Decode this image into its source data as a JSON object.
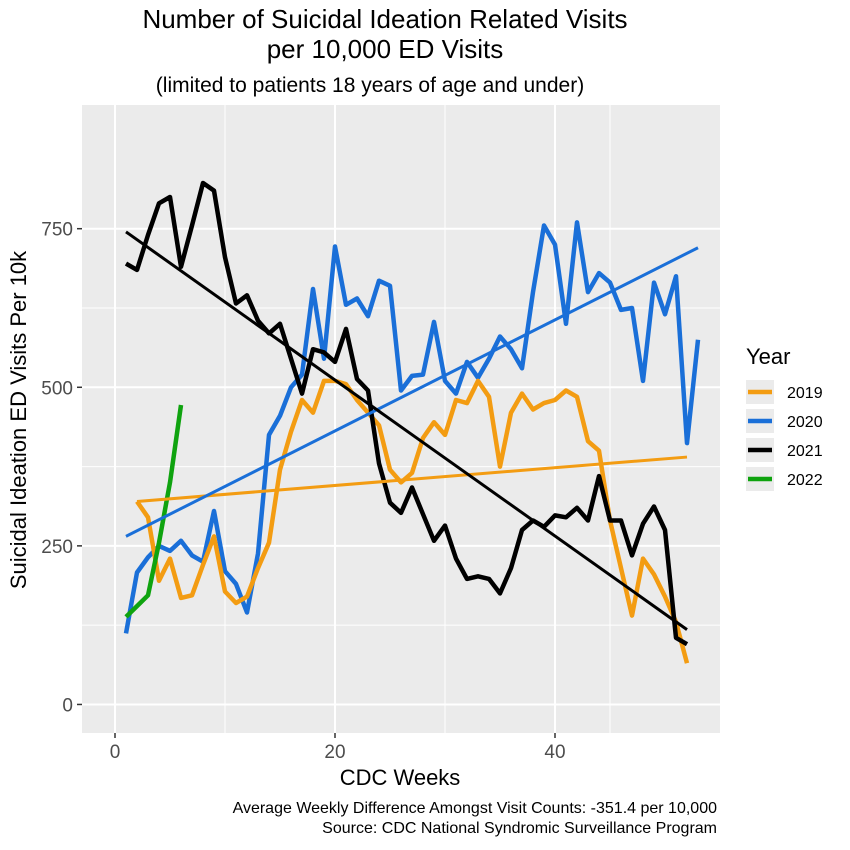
{
  "chart_data": {
    "type": "line",
    "title_line1": "Number of Suicidal Ideation Related Visits",
    "title_line2": "per 10,000 ED Visits",
    "subtitle": "(limited to patients 18 years of age and under)",
    "xlabel": "CDC Weeks",
    "ylabel": "Suicidal Ideation ED Visits Per 10k",
    "xlim": [
      -3,
      55
    ],
    "ylim": [
      -45,
      945
    ],
    "x_ticks": [
      0,
      20,
      40
    ],
    "y_ticks": [
      0,
      250,
      500,
      750
    ],
    "grid": true,
    "legend": {
      "title": "Year",
      "position": "right"
    },
    "caption_line1": "Average Weekly Difference Amongst Visit Counts: -351.4 per 10,000",
    "caption_line2": "Source: CDC National Syndromic Surveillance Program",
    "series": [
      {
        "name": "2019",
        "color": "#F39C12",
        "x": [
          2,
          3,
          4,
          5,
          6,
          7,
          8,
          9,
          10,
          11,
          12,
          13,
          14,
          15,
          16,
          17,
          18,
          19,
          20,
          21,
          22,
          23,
          24,
          25,
          26,
          27,
          28,
          29,
          30,
          31,
          32,
          33,
          34,
          35,
          36,
          37,
          38,
          39,
          40,
          41,
          42,
          43,
          44,
          45,
          46,
          47,
          48,
          49,
          50,
          51,
          52
        ],
        "y": [
          320,
          295,
          195,
          230,
          168,
          172,
          220,
          265,
          178,
          160,
          170,
          215,
          255,
          370,
          430,
          480,
          460,
          510,
          510,
          505,
          480,
          460,
          440,
          370,
          350,
          365,
          420,
          445,
          425,
          480,
          475,
          510,
          485,
          375,
          460,
          490,
          465,
          475,
          480,
          495,
          485,
          415,
          400,
          290,
          215,
          140,
          230,
          205,
          170,
          130,
          65
        ],
        "trend": {
          "x": [
            2,
            52
          ],
          "y": [
            320,
            390
          ]
        }
      },
      {
        "name": "2020",
        "color": "#1A6FD8",
        "x": [
          1,
          2,
          3,
          4,
          5,
          6,
          7,
          8,
          9,
          10,
          11,
          12,
          13,
          14,
          15,
          16,
          17,
          18,
          19,
          20,
          21,
          22,
          23,
          24,
          25,
          26,
          27,
          28,
          29,
          30,
          31,
          32,
          33,
          34,
          35,
          36,
          37,
          38,
          39,
          40,
          41,
          42,
          43,
          44,
          45,
          46,
          47,
          48,
          49,
          50,
          51,
          52,
          53
        ],
        "y": [
          112,
          208,
          232,
          250,
          242,
          258,
          235,
          225,
          305,
          210,
          190,
          145,
          238,
          425,
          455,
          500,
          520,
          655,
          545,
          722,
          630,
          640,
          612,
          668,
          660,
          495,
          518,
          520,
          603,
          510,
          490,
          540,
          515,
          545,
          580,
          560,
          530,
          650,
          755,
          725,
          600,
          760,
          650,
          680,
          665,
          622,
          625,
          510,
          665,
          615,
          675,
          412,
          575
        ],
        "trend": {
          "x": [
            1,
            53
          ],
          "y": [
            265,
            720
          ]
        }
      },
      {
        "name": "2021",
        "color": "#000000",
        "x": [
          1,
          2,
          3,
          4,
          5,
          6,
          7,
          8,
          9,
          10,
          11,
          12,
          13,
          14,
          15,
          16,
          17,
          18,
          19,
          20,
          21,
          22,
          23,
          24,
          25,
          26,
          27,
          28,
          29,
          30,
          31,
          32,
          33,
          34,
          35,
          36,
          37,
          38,
          39,
          40,
          41,
          42,
          43,
          44,
          45,
          46,
          47,
          48,
          49,
          50,
          51,
          52
        ],
        "y": [
          695,
          685,
          740,
          790,
          800,
          690,
          755,
          822,
          810,
          705,
          632,
          645,
          605,
          585,
          600,
          545,
          490,
          560,
          555,
          540,
          592,
          513,
          495,
          380,
          318,
          302,
          342,
          300,
          258,
          282,
          230,
          198,
          202,
          198,
          175,
          215,
          275,
          290,
          280,
          298,
          295,
          310,
          290,
          360,
          290,
          290,
          235,
          285,
          312,
          275,
          105,
          95
        ],
        "trend": {
          "x": [
            1,
            52
          ],
          "y": [
            745,
            118
          ]
        }
      },
      {
        "name": "2022",
        "color": "#0FA30F",
        "x": [
          1,
          2,
          3,
          4,
          5,
          6
        ],
        "y": [
          138,
          155,
          172,
          255,
          350,
          472
        ],
        "trend": null
      }
    ]
  }
}
